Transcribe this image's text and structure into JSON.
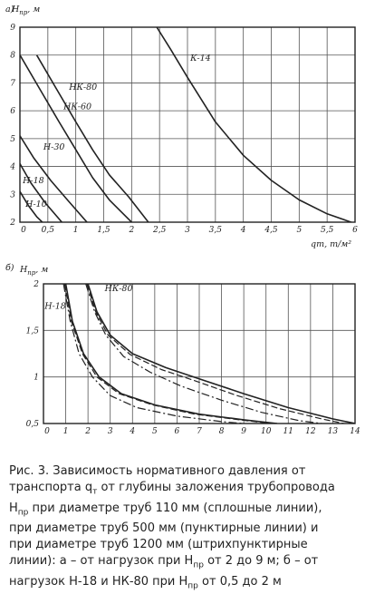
{
  "chart_data": [
    {
      "panel_label": "а)",
      "type": "line",
      "ylabel": "Hпр, м",
      "xlabel": "qт, т/м²",
      "xlim": [
        0,
        6
      ],
      "ylim": [
        2,
        9
      ],
      "x_ticks": [
        "0",
        "0,5",
        "1",
        "1,5",
        "2",
        "2,5",
        "3",
        "3,5",
        "4",
        "4,5",
        "5",
        "5,5",
        "6"
      ],
      "y_ticks": [
        "2",
        "3",
        "4",
        "5",
        "6",
        "7",
        "8",
        "9"
      ],
      "series": [
        {
          "name": "Н-10",
          "style": "solid",
          "points": [
            [
              0,
              3.1
            ],
            [
              0.15,
              2.6
            ],
            [
              0.3,
              2.2
            ],
            [
              0.4,
              2.0
            ]
          ]
        },
        {
          "name": "Н-18",
          "style": "solid",
          "points": [
            [
              0,
              4.1
            ],
            [
              0.2,
              3.4
            ],
            [
              0.45,
              2.7
            ],
            [
              0.75,
              2.0
            ]
          ]
        },
        {
          "name": "Н-30",
          "style": "solid",
          "points": [
            [
              0,
              5.1
            ],
            [
              0.25,
              4.3
            ],
            [
              0.55,
              3.5
            ],
            [
              0.85,
              2.8
            ],
            [
              1.2,
              2.0
            ]
          ]
        },
        {
          "name": "НК-60",
          "style": "solid",
          "points": [
            [
              0,
              8.0
            ],
            [
              0.35,
              6.8
            ],
            [
              0.7,
              5.6
            ],
            [
              1.0,
              4.6
            ],
            [
              1.3,
              3.6
            ],
            [
              1.6,
              2.8
            ],
            [
              2.0,
              2.0
            ]
          ]
        },
        {
          "name": "НК-80",
          "style": "solid",
          "points": [
            [
              0.3,
              8.0
            ],
            [
              0.65,
              6.8
            ],
            [
              1.0,
              5.6
            ],
            [
              1.3,
              4.6
            ],
            [
              1.6,
              3.7
            ],
            [
              1.95,
              2.9
            ],
            [
              2.3,
              2.0
            ]
          ]
        },
        {
          "name": "К-14",
          "style": "solid",
          "points": [
            [
              2.45,
              9.0
            ],
            [
              2.7,
              8.2
            ],
            [
              3.0,
              7.2
            ],
            [
              3.5,
              5.6
            ],
            [
              4.0,
              4.4
            ],
            [
              4.5,
              3.5
            ],
            [
              5.0,
              2.8
            ],
            [
              5.5,
              2.3
            ],
            [
              6.0,
              1.95
            ]
          ]
        }
      ]
    },
    {
      "panel_label": "б)",
      "type": "line",
      "ylabel": "Hпр, м",
      "xlabel": "",
      "xlim": [
        0,
        14
      ],
      "ylim": [
        0.5,
        2.0
      ],
      "x_ticks": [
        "0",
        "1",
        "2",
        "3",
        "4",
        "5",
        "6",
        "7",
        "8",
        "9",
        "10",
        "11",
        "12",
        "13",
        "14"
      ],
      "y_ticks": [
        "0,5",
        "1",
        "1,5",
        "2"
      ],
      "series": [
        {
          "name": "Н-18",
          "style": "solid",
          "points": [
            [
              1.0,
              2.0
            ],
            [
              1.3,
              1.6
            ],
            [
              1.8,
              1.25
            ],
            [
              2.5,
              1.0
            ],
            [
              3.5,
              0.82
            ],
            [
              5.0,
              0.7
            ],
            [
              7.0,
              0.6
            ],
            [
              9.0,
              0.54
            ],
            [
              10.5,
              0.5
            ]
          ]
        },
        {
          "name": "",
          "style": "dashed",
          "points": [
            [
              0.95,
              2.0
            ],
            [
              1.25,
              1.6
            ],
            [
              1.75,
              1.25
            ],
            [
              2.4,
              1.0
            ],
            [
              3.4,
              0.82
            ],
            [
              4.9,
              0.7
            ],
            [
              6.8,
              0.6
            ],
            [
              8.8,
              0.54
            ],
            [
              10.2,
              0.5
            ]
          ]
        },
        {
          "name": "",
          "style": "dashdot",
          "points": [
            [
              0.9,
              2.0
            ],
            [
              1.2,
              1.6
            ],
            [
              1.6,
              1.25
            ],
            [
              2.2,
              1.0
            ],
            [
              3.0,
              0.8
            ],
            [
              4.2,
              0.67
            ],
            [
              6.0,
              0.58
            ],
            [
              8.0,
              0.52
            ],
            [
              9.0,
              0.5
            ]
          ]
        },
        {
          "name": "НК-80",
          "style": "solid",
          "points": [
            [
              2.0,
              2.0
            ],
            [
              2.4,
              1.7
            ],
            [
              3.0,
              1.45
            ],
            [
              4.0,
              1.25
            ],
            [
              5.5,
              1.1
            ],
            [
              7.0,
              0.98
            ],
            [
              9.0,
              0.82
            ],
            [
              11.0,
              0.67
            ],
            [
              13.0,
              0.55
            ],
            [
              14.0,
              0.5
            ]
          ]
        },
        {
          "name": "",
          "style": "dashed",
          "points": [
            [
              1.95,
              2.0
            ],
            [
              2.35,
              1.7
            ],
            [
              2.9,
              1.45
            ],
            [
              3.9,
              1.24
            ],
            [
              5.3,
              1.08
            ],
            [
              6.8,
              0.96
            ],
            [
              8.7,
              0.8
            ],
            [
              10.6,
              0.66
            ],
            [
              12.5,
              0.55
            ],
            [
              13.5,
              0.5
            ]
          ]
        },
        {
          "name": "",
          "style": "dashdot",
          "points": [
            [
              1.9,
              2.0
            ],
            [
              2.3,
              1.7
            ],
            [
              2.8,
              1.45
            ],
            [
              3.6,
              1.22
            ],
            [
              4.8,
              1.05
            ],
            [
              6.2,
              0.9
            ],
            [
              8.0,
              0.75
            ],
            [
              9.8,
              0.62
            ],
            [
              11.5,
              0.53
            ],
            [
              12.5,
              0.5
            ]
          ]
        }
      ]
    }
  ],
  "caption": {
    "line1": "Рис. 3. Зависимость нормативного давления от",
    "line2_pre": "транспорта q",
    "line2_sub": "т",
    "line2_post": " от глубины заложения трубопровода",
    "line3_pre": "Н",
    "line3_sub": "пр",
    "line3_post": " при диаметре труб 110 мм (сплошные линии),",
    "line4": "при диаметре труб 500 мм (пунктирные линии) и",
    "line5": "при диаметре труб 1200 мм (штрихпунктирные",
    "line6": "линии): а – от нагрузок при Н",
    "line6_sub": "пр",
    "line6_post": " от 2 до 9 м; б – от",
    "line7_pre": "нагрузок Н-18 и НК-80 при Н",
    "line7_sub": "пр",
    "line7_post": " от 0,5 до 2 м"
  },
  "colors": {
    "ink": "#222222",
    "grid": "#555555",
    "background": "#ffffff"
  }
}
